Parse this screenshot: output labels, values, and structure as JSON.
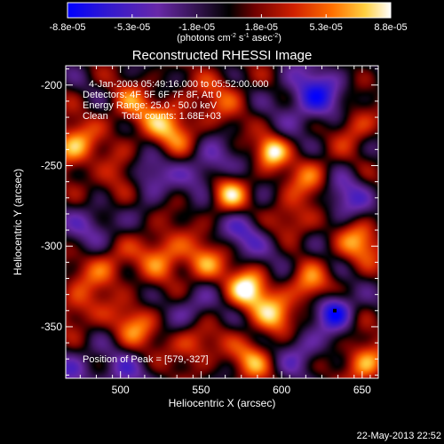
{
  "chart_data": {
    "type": "heatmap",
    "title": "Reconstructed RHESSI Image",
    "xlabel": "Heliocentric X (arcsec)",
    "ylabel": "Heliocentric Y (arcsec)",
    "xlim": [
      466,
      660
    ],
    "ylim": [
      -382,
      -188
    ],
    "xticks": [
      500,
      550,
      600,
      650
    ],
    "yticks": [
      -200,
      -250,
      -300,
      -350
    ],
    "colorbar": {
      "min": -8.8e-05,
      "max": 8.8e-05,
      "ticks": [
        "-8.8e-05",
        "-5.3e-05",
        "-1.8e-05",
        "1.8e-05",
        "5.3e-05",
        "8.8e-05"
      ],
      "unit_text": "(photons cm",
      "unit_sup1": "-2",
      "unit_mid": " s",
      "unit_sup2": "-1",
      "unit_end": " asec",
      "unit_sup3": "-2",
      "unit_close": ")",
      "colormap": [
        "#0000ff",
        "#4020c0",
        "#7030a0",
        "#000000",
        "#600000",
        "#c01000",
        "#ff5000",
        "#ffa000",
        "#ffff80",
        "#ffffff"
      ]
    },
    "annotations": {
      "line1": "4-Jan-2003 05:49:16.000 to 05:52:00.000",
      "line2": "Detectors: 4F 5F 6F 7F 8F, Att 0",
      "line3": "Energy Range: 25.0 - 50.0 keV",
      "line4": "Clean     Total counts: 1.68E+03",
      "peak": "Position of Peak = [579,-327]"
    },
    "sources": [
      {
        "x": 579,
        "y": -327,
        "amp": 1.0,
        "sigma": 9
      },
      {
        "x": 567,
        "y": -267,
        "amp": 0.85,
        "sigma": 9
      },
      {
        "x": 594,
        "y": -241,
        "amp": 0.95,
        "sigma": 7
      },
      {
        "x": 471,
        "y": -238,
        "amp": 0.85,
        "sigma": 10
      },
      {
        "x": 530,
        "y": -227,
        "amp": 0.7,
        "sigma": 12
      },
      {
        "x": 506,
        "y": -213,
        "amp": 0.5,
        "sigma": 10
      },
      {
        "x": 645,
        "y": -225,
        "amp": 0.55,
        "sigma": 9
      },
      {
        "x": 618,
        "y": -257,
        "amp": 0.55,
        "sigma": 10
      },
      {
        "x": 605,
        "y": -285,
        "amp": 0.6,
        "sigma": 10
      },
      {
        "x": 648,
        "y": -298,
        "amp": 0.7,
        "sigma": 10
      },
      {
        "x": 500,
        "y": -262,
        "amp": 0.55,
        "sigma": 11
      },
      {
        "x": 527,
        "y": -304,
        "amp": 0.65,
        "sigma": 11
      },
      {
        "x": 490,
        "y": -313,
        "amp": 0.6,
        "sigma": 11
      },
      {
        "x": 552,
        "y": -311,
        "amp": 0.65,
        "sigma": 9
      },
      {
        "x": 596,
        "y": -343,
        "amp": 0.75,
        "sigma": 9
      },
      {
        "x": 617,
        "y": -325,
        "amp": 0.65,
        "sigma": 9
      },
      {
        "x": 473,
        "y": -340,
        "amp": 0.5,
        "sigma": 10
      },
      {
        "x": 509,
        "y": -350,
        "amp": 0.6,
        "sigma": 10
      },
      {
        "x": 546,
        "y": -360,
        "amp": 0.6,
        "sigma": 10
      },
      {
        "x": 582,
        "y": -370,
        "amp": 0.65,
        "sigma": 9
      },
      {
        "x": 652,
        "y": -372,
        "amp": 0.8,
        "sigma": 9
      },
      {
        "x": 562,
        "y": -207,
        "amp": 0.4,
        "sigma": 12
      },
      {
        "x": 620,
        "y": -207,
        "amp": -0.8,
        "sigma": 13
      },
      {
        "x": 633,
        "y": -340,
        "amp": -1.0,
        "sigma": 8
      },
      {
        "x": 485,
        "y": -287,
        "amp": -0.5,
        "sigma": 12
      },
      {
        "x": 517,
        "y": -258,
        "amp": -0.7,
        "sigma": 10
      },
      {
        "x": 555,
        "y": -252,
        "amp": -0.6,
        "sigma": 11
      },
      {
        "x": 578,
        "y": -290,
        "amp": -0.55,
        "sigma": 10
      },
      {
        "x": 545,
        "y": -340,
        "amp": -0.5,
        "sigma": 10
      },
      {
        "x": 600,
        "y": -300,
        "amp": -0.35,
        "sigma": 9
      },
      {
        "x": 640,
        "y": -270,
        "amp": -0.55,
        "sigma": 11
      },
      {
        "x": 500,
        "y": -380,
        "amp": -0.45,
        "sigma": 11
      },
      {
        "x": 612,
        "y": -364,
        "amp": -0.5,
        "sigma": 10
      },
      {
        "x": 470,
        "y": -375,
        "amp": -0.4,
        "sigma": 11
      }
    ]
  },
  "footer": {
    "timestamp": "22-May-2013 22:52"
  }
}
